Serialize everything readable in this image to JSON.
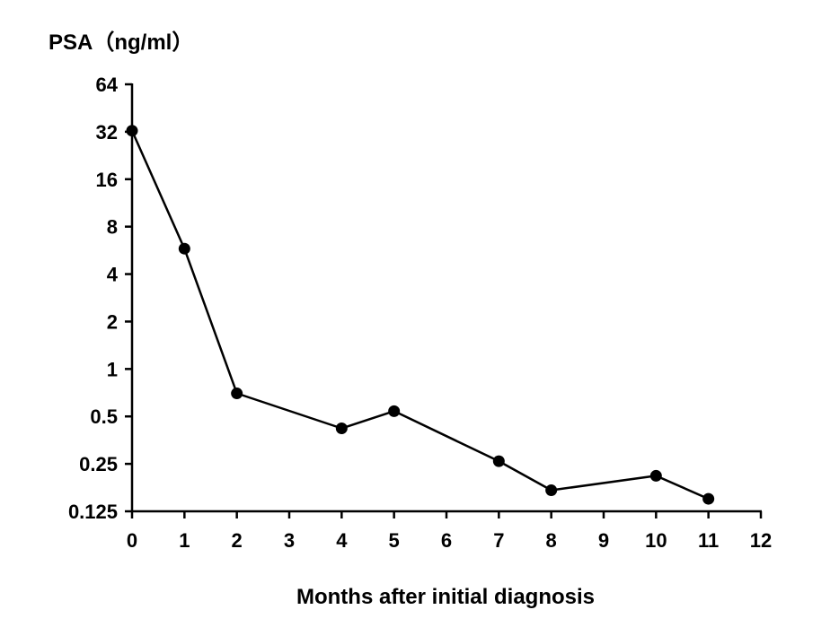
{
  "chart_data": {
    "type": "line",
    "ylabel": "PSA（ng/ml）",
    "xlabel": "Months after initial diagnosis",
    "x_ticks": [
      "0",
      "1",
      "2",
      "3",
      "4",
      "5",
      "6",
      "7",
      "8",
      "9",
      "10",
      "11",
      "12"
    ],
    "y_ticks": [
      "64",
      "32",
      "16",
      "8",
      "4",
      "2",
      "1",
      "0.5",
      "0.25",
      "0.125"
    ],
    "y_scale": "log2",
    "xlim": [
      0,
      12
    ],
    "ylim": [
      0.125,
      64
    ],
    "grid": false,
    "series": [
      {
        "x": [
          0,
          1,
          2,
          4,
          5,
          7,
          8,
          10,
          11
        ],
        "y": [
          32.5,
          5.8,
          0.7,
          0.42,
          0.54,
          0.26,
          0.17,
          0.21,
          0.15
        ]
      }
    ]
  }
}
